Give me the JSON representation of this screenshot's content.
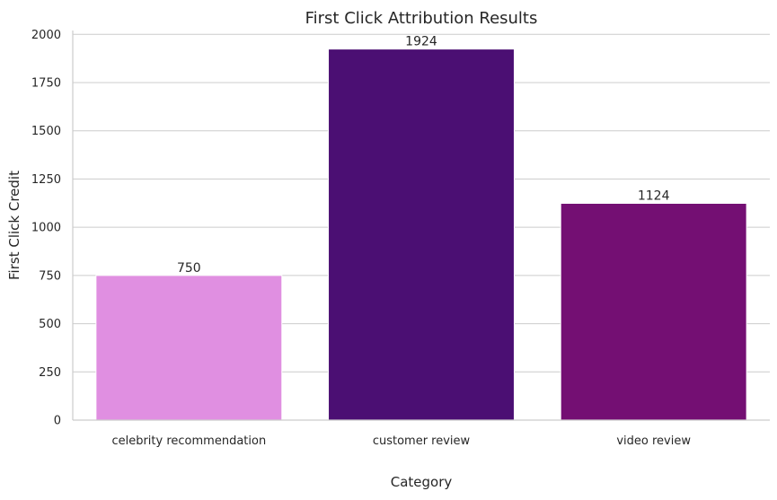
{
  "chart_data": {
    "type": "bar",
    "title": "First Click Attribution Results",
    "xlabel": "Category",
    "ylabel": "First Click Credit",
    "categories": [
      "celebrity recommendation",
      "customer review",
      "video review"
    ],
    "values": [
      750,
      1924,
      1124
    ],
    "data_labels": [
      "750",
      "1924",
      "1124"
    ],
    "colors": [
      "#e08fe1",
      "#4b0f73",
      "#740f73"
    ],
    "ylim": [
      0,
      2020
    ],
    "yticks": [
      0,
      250,
      500,
      750,
      1000,
      1250,
      1500,
      1750,
      2000
    ],
    "ytick_labels": [
      "0",
      "250",
      "500",
      "750",
      "1000",
      "1250",
      "1500",
      "1750",
      "2000"
    ],
    "grid": "horizontal",
    "legend": "none"
  }
}
